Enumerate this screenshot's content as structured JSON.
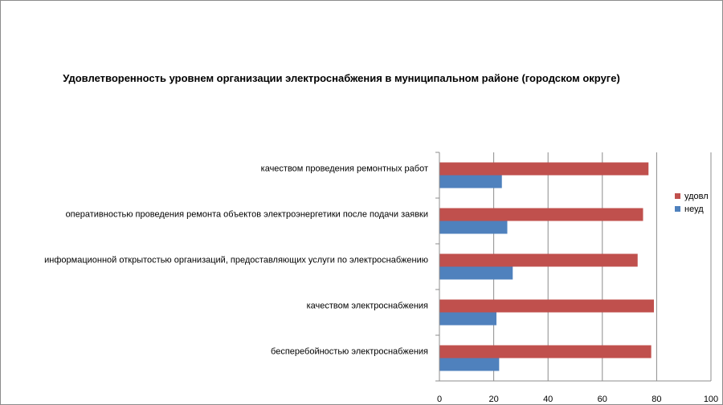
{
  "chart_data": {
    "type": "bar",
    "orientation": "horizontal",
    "title": "Удовлетворенность уровнем организации электроснабжения в муниципальном районе (городском округе)",
    "categories": [
      "качеством проведения ремонтных работ",
      "оперативностью проведения ремонта объектов электроэнергетики после подачи заявки",
      "информационной открытостью организаций, предоставляющих услуги по электроснабжению",
      "качеством электроснабжения",
      "бесперебойностью электроснабжения"
    ],
    "series": [
      {
        "name": "удовл",
        "color": "#c0504d",
        "values": [
          77,
          75,
          73,
          79,
          78
        ]
      },
      {
        "name": "неуд",
        "color": "#4f81bd",
        "values": [
          23,
          25,
          27,
          21,
          22
        ]
      }
    ],
    "xlim": [
      0,
      100
    ],
    "xticks": [
      0,
      20,
      40,
      60,
      80,
      100
    ],
    "grid": true,
    "legend_position": "right"
  }
}
